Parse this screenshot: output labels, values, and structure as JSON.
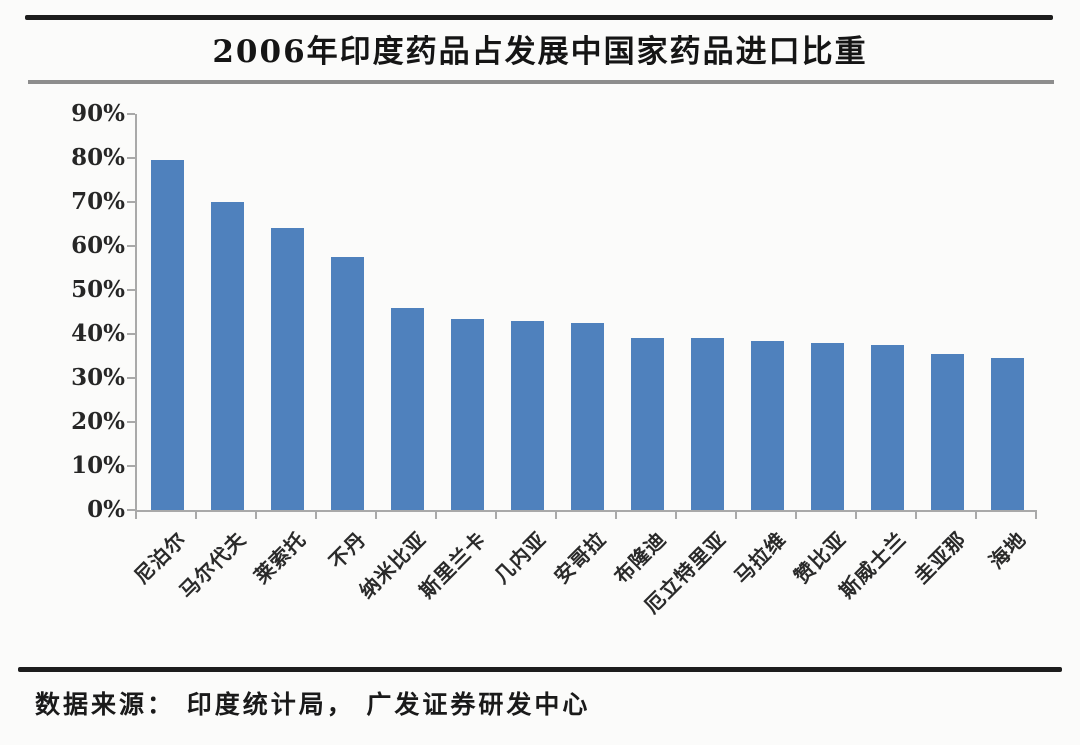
{
  "title": "2006年印度药品占发展中国家药品进口比重",
  "source": "数据来源： 印度统计局， 广发证券研发中心",
  "colors": {
    "bar": "#4f81bd",
    "axis": "#a9a9a9",
    "divider_dark": "#1d1d1d",
    "divider_gray": "#8d8d8d"
  },
  "chart_data": {
    "type": "bar",
    "title": "2006年印度药品占发展中国家药品进口比重",
    "categories": [
      "尼泊尔",
      "马尔代夫",
      "莱索托",
      "不丹",
      "纳米比亚",
      "斯里兰卡",
      "几内亚",
      "安哥拉",
      "布隆迪",
      "厄立特里亚",
      "马拉维",
      "赞比亚",
      "斯威士兰",
      "圭亚那",
      "海地"
    ],
    "values": [
      79.5,
      70,
      64,
      57.5,
      46,
      43.5,
      43,
      42.5,
      39,
      39,
      38.5,
      38,
      37.5,
      35.5,
      34.5
    ],
    "xlabel": "",
    "ylabel": "",
    "ylim": [
      0,
      90
    ],
    "ytick_step": 10,
    "ytick_labels": [
      "0%",
      "10%",
      "20%",
      "30%",
      "40%",
      "50%",
      "60%",
      "70%",
      "80%",
      "90%"
    ],
    "bar_color": "#4f81bd",
    "grid": false,
    "legend": false,
    "x_labels_rotation_deg": -45
  }
}
